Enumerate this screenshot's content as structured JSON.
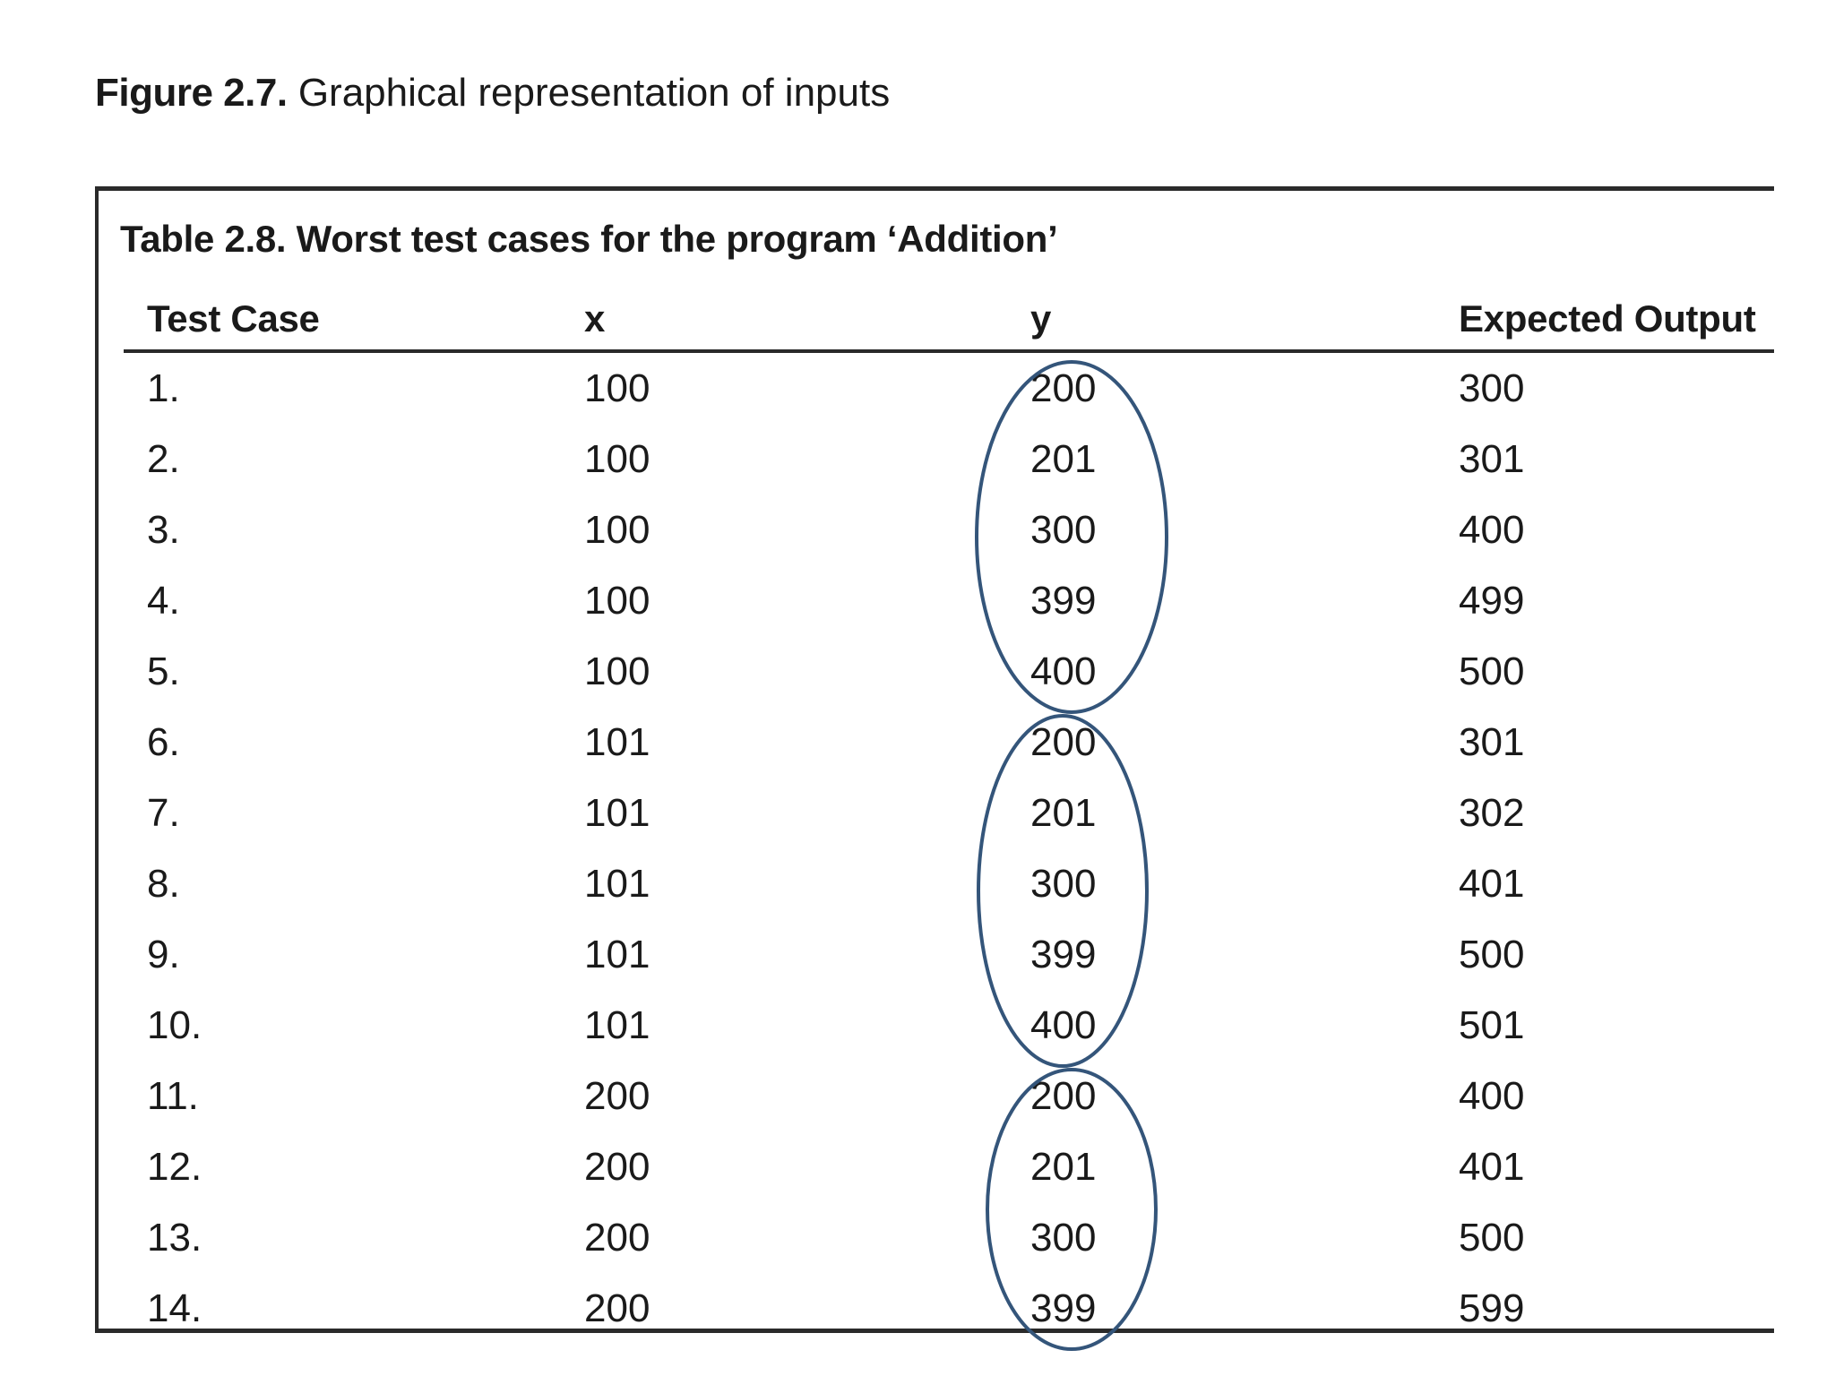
{
  "figure_caption": {
    "label": "Figure 2.7.",
    "text": "Graphical representation of inputs"
  },
  "table": {
    "caption": "Table 2.8. Worst test cases for the program ‘Addition’",
    "columns": [
      "Test Case",
      "x",
      "y",
      "Expected Output"
    ],
    "rows": [
      [
        "1.",
        "100",
        "200",
        "300"
      ],
      [
        "2.",
        "100",
        "201",
        "301"
      ],
      [
        "3.",
        "100",
        "300",
        "400"
      ],
      [
        "4.",
        "100",
        "399",
        "499"
      ],
      [
        "5.",
        "100",
        "400",
        "500"
      ],
      [
        "6.",
        "101",
        "200",
        "301"
      ],
      [
        "7.",
        "101",
        "201",
        "302"
      ],
      [
        "8.",
        "101",
        "300",
        "401"
      ],
      [
        "9.",
        "101",
        "399",
        "500"
      ],
      [
        "10.",
        "101",
        "400",
        "501"
      ],
      [
        "11.",
        "200",
        "200",
        "400"
      ],
      [
        "12.",
        "200",
        "201",
        "401"
      ],
      [
        "13.",
        "200",
        "300",
        "500"
      ],
      [
        "14.",
        "200",
        "399",
        "599"
      ]
    ]
  },
  "annotations": {
    "ellipse_color": "#34557a",
    "ellipse_groups": [
      {
        "from_row": 1,
        "to_row": 5
      },
      {
        "from_row": 6,
        "to_row": 10
      },
      {
        "from_row": 11,
        "to_row": 14
      }
    ]
  }
}
